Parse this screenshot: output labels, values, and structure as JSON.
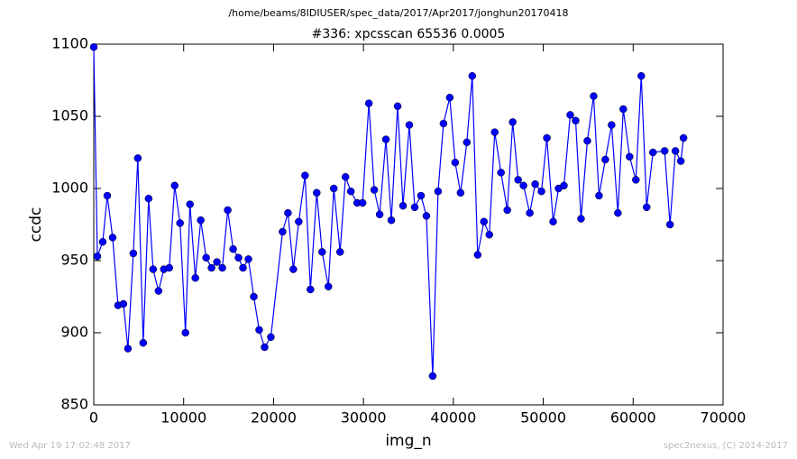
{
  "chart_data": {
    "type": "line",
    "header": "/home/beams/8IDIUSER/spec_data/2017/Apr2017/jonghun20170418",
    "title": "#336: xpcsscan 65536 0.0005",
    "xlabel": "img_n",
    "ylabel": "ccdc",
    "footer_left": "Wed Apr 19 17:02:48 2017",
    "footer_right": "spec2nexus, (C) 2014-2017",
    "color": "#0000ff",
    "marker": true,
    "x": [
      0,
      400,
      1000,
      1500,
      2100,
      2700,
      3300,
      3800,
      4400,
      4900,
      5500,
      6100,
      6600,
      7200,
      7800,
      8400,
      9000,
      9600,
      10200,
      10700,
      11300,
      11900,
      12500,
      13100,
      13700,
      14300,
      14900,
      15500,
      16100,
      16600,
      17200,
      17800,
      18400,
      19000,
      19700,
      21000,
      21600,
      22200,
      22800,
      23500,
      24100,
      24800,
      25400,
      26100,
      26700,
      27400,
      28000,
      28600,
      29300,
      29900,
      30600,
      31200,
      31800,
      32500,
      33100,
      33800,
      34400,
      35100,
      35700,
      36400,
      37000,
      37700,
      38300,
      38900,
      39600,
      40200,
      40800,
      41500,
      42100,
      42700,
      43400,
      44000,
      44600,
      45300,
      46000,
      46600,
      47200,
      47800,
      48500,
      49100,
      49800,
      50400,
      51100,
      51700,
      52300,
      53000,
      53600,
      54200,
      54900,
      55600,
      56200,
      56900,
      57600,
      58300,
      58900,
      59600,
      60300,
      60900,
      61500,
      62200,
      63500,
      64100,
      64700,
      65300,
      65600
    ],
    "values": [
      1098,
      953,
      963,
      995,
      966,
      919,
      920,
      889,
      955,
      1021,
      893,
      993,
      944,
      929,
      944,
      945,
      1002,
      976,
      900,
      989,
      938,
      978,
      952,
      945,
      949,
      945,
      985,
      958,
      952,
      945,
      951,
      925,
      902,
      890,
      897,
      970,
      983,
      944,
      977,
      1009,
      930,
      997,
      956,
      932,
      1000,
      956,
      1008,
      998,
      990,
      990,
      1059,
      999,
      982,
      1034,
      978,
      1057,
      988,
      1044,
      987,
      995,
      981,
      870,
      998,
      1045,
      1063,
      1018,
      997,
      1032,
      1078,
      954,
      977,
      968,
      1039,
      1011,
      985,
      1046,
      1006,
      1002,
      983,
      1003,
      998,
      1035,
      977,
      1000,
      1002,
      1051,
      1047,
      979,
      1033,
      1064,
      995,
      1020,
      1044,
      983,
      1055,
      1022,
      1006,
      1078,
      987,
      1025,
      1026,
      975,
      1026,
      1019,
      1035
    ],
    "xlim": [
      0,
      70000
    ],
    "ylim": [
      850,
      1100
    ],
    "xticks": [
      0,
      10000,
      20000,
      30000,
      40000,
      50000,
      60000,
      70000
    ],
    "yticks": [
      850,
      900,
      950,
      1000,
      1050,
      1100
    ],
    "grid": false
  }
}
